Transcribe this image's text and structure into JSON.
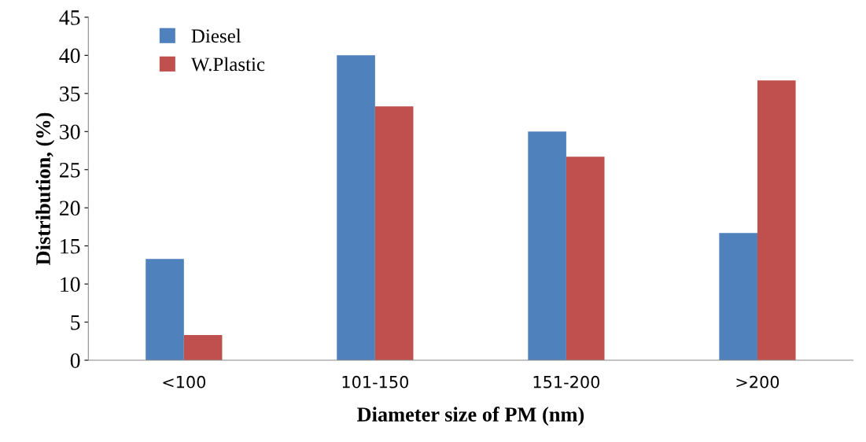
{
  "chart_data": {
    "type": "bar",
    "xlabel": "Diameter size of PM (nm)",
    "ylabel": "Distribution, (%)",
    "categories": [
      "<100",
      "101-150",
      "151-200",
      ">200"
    ],
    "series": [
      {
        "name": "Diesel",
        "color": "#4f81bd",
        "values": [
          13.3,
          40,
          30,
          16.7
        ]
      },
      {
        "name": "W.Plastic",
        "color": "#c0504d",
        "values": [
          3.3,
          33.3,
          26.7,
          36.7
        ]
      }
    ],
    "ylim": [
      0,
      45
    ],
    "yticks": [
      0,
      5,
      10,
      15,
      20,
      25,
      30,
      35,
      40,
      45
    ],
    "grid": false,
    "legend": "top left"
  }
}
